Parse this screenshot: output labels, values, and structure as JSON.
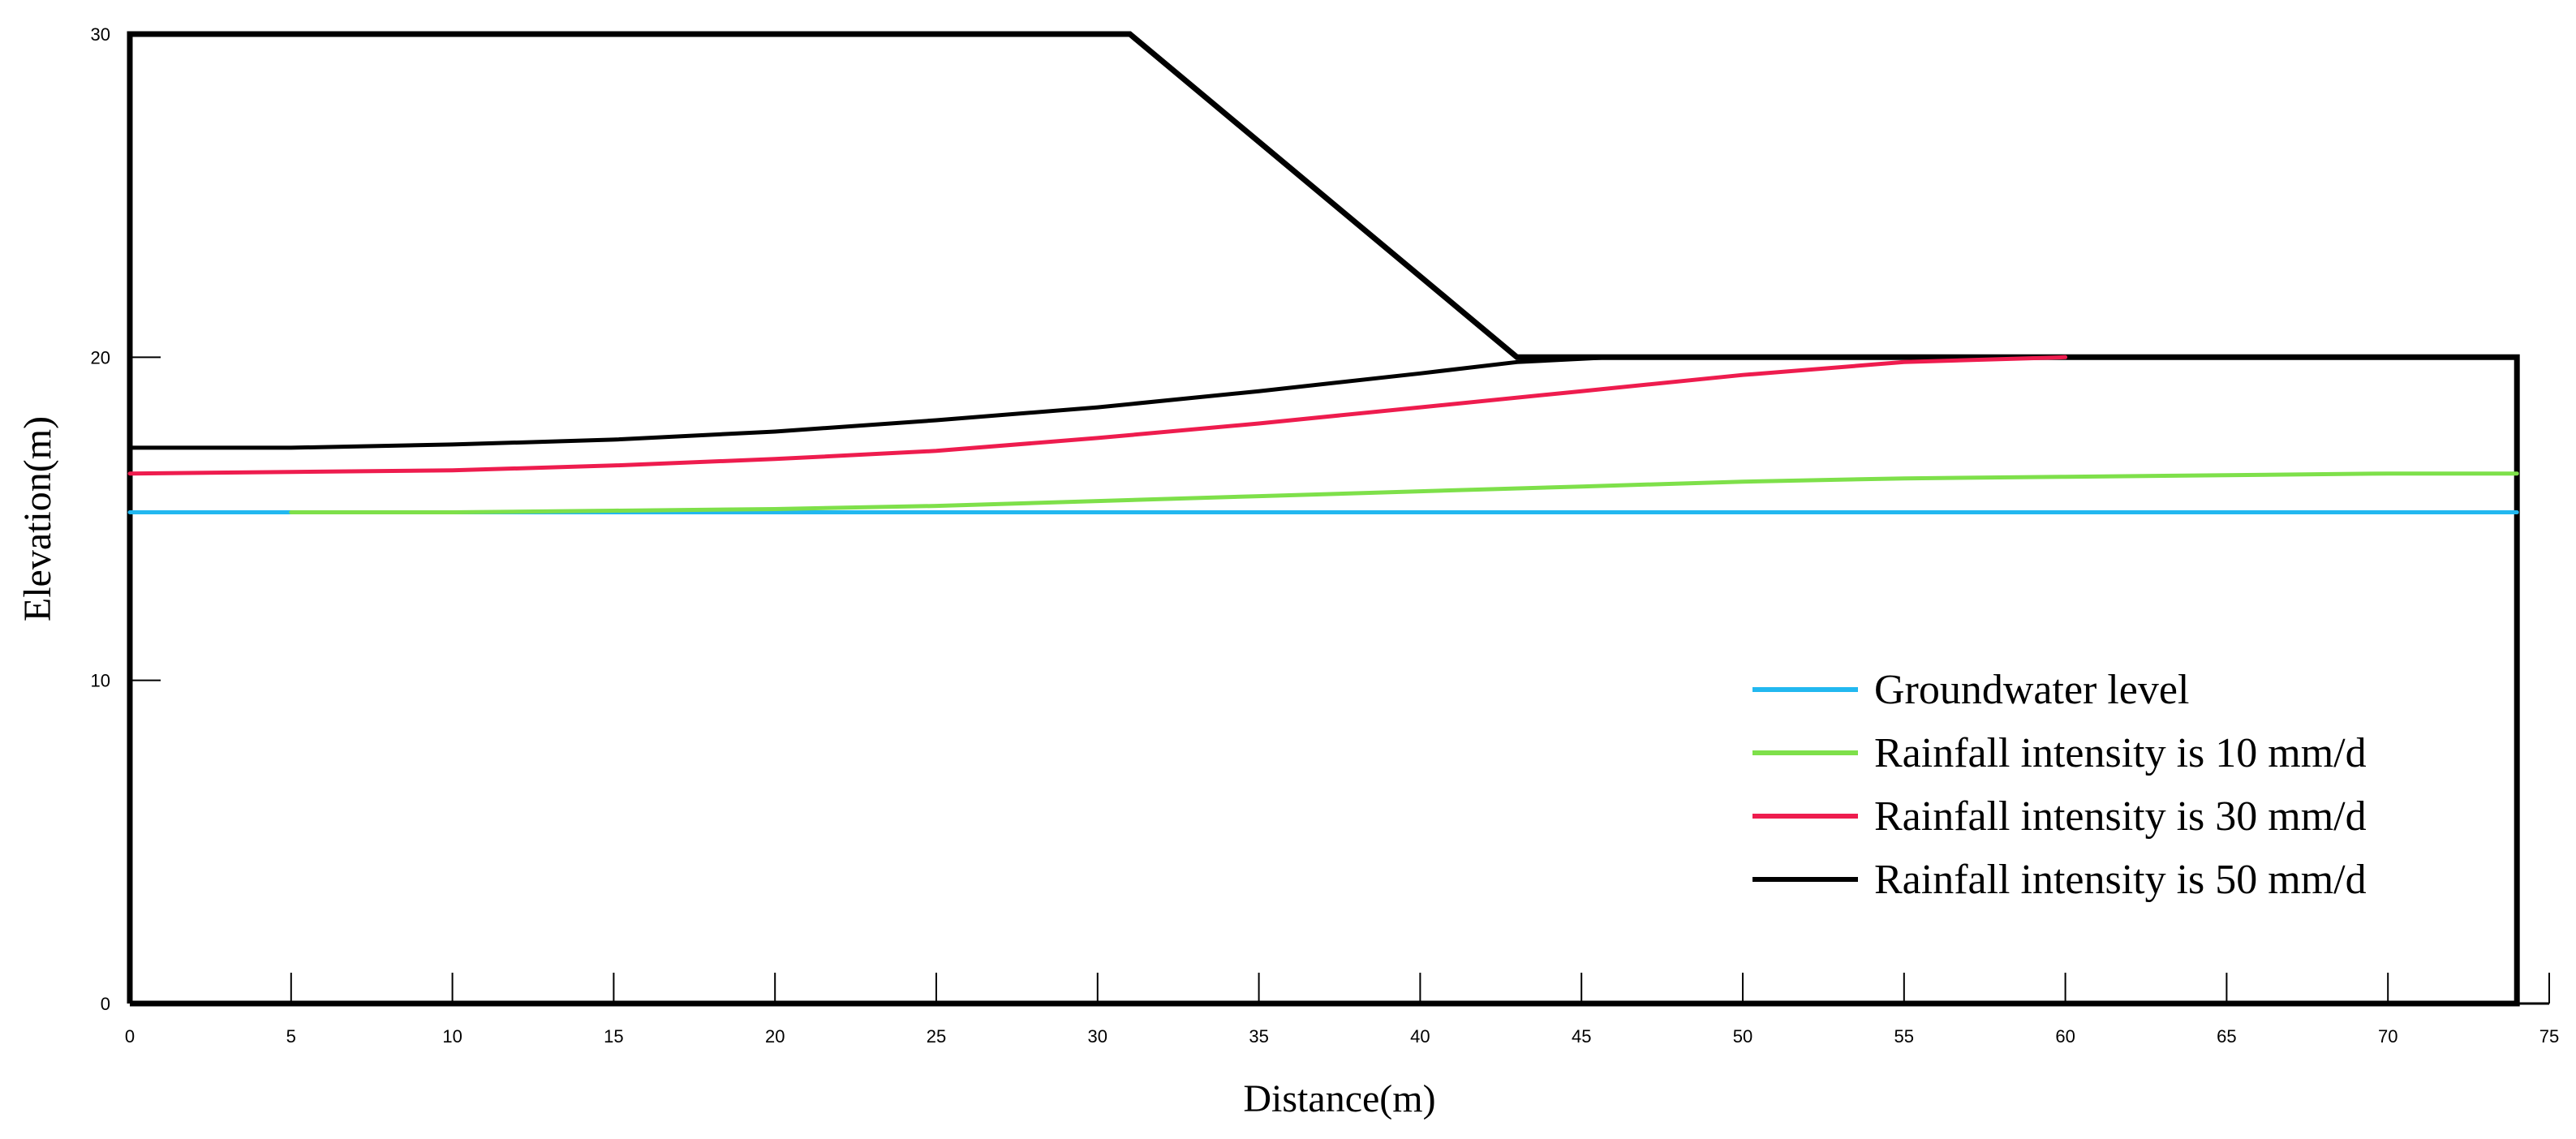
{
  "chart_data": {
    "type": "line",
    "title": "",
    "xlabel": "Distance(m)",
    "ylabel": "Elevation(m)",
    "xlim": [
      0,
      75
    ],
    "ylim": [
      0,
      30
    ],
    "x_ticks": [
      0,
      5,
      10,
      15,
      20,
      25,
      30,
      35,
      40,
      45,
      50,
      55,
      60,
      65,
      70,
      75
    ],
    "y_ticks": [
      0,
      10,
      20,
      30
    ],
    "grid": false,
    "legend_position": "bottom-right",
    "slope_geometry": {
      "x": [
        0,
        0,
        31,
        43,
        74,
        74,
        0
      ],
      "y": [
        0,
        30,
        30,
        20,
        20,
        0,
        0
      ],
      "color": "#000000"
    },
    "series": [
      {
        "name": "Groundwater level",
        "color": "#22b8f0",
        "x": [
          0,
          74
        ],
        "y": [
          15.2,
          15.2
        ]
      },
      {
        "name": "Rainfall intensity is 10 mm/d",
        "color": "#7ee04a",
        "x": [
          5,
          10,
          15,
          20,
          25,
          30,
          35,
          40,
          45,
          50,
          55,
          60,
          65,
          70,
          74
        ],
        "y": [
          15.2,
          15.2,
          15.25,
          15.3,
          15.4,
          15.55,
          15.7,
          15.85,
          16.0,
          16.15,
          16.25,
          16.3,
          16.35,
          16.4,
          16.4
        ]
      },
      {
        "name": "Rainfall intensity is 30 mm/d",
        "color": "#ee1c4e",
        "x": [
          0,
          5,
          10,
          15,
          20,
          25,
          30,
          35,
          40,
          45,
          50,
          55,
          60
        ],
        "y": [
          16.4,
          16.45,
          16.5,
          16.65,
          16.85,
          17.1,
          17.5,
          17.95,
          18.45,
          18.95,
          19.45,
          19.85,
          20.0
        ]
      },
      {
        "name": "Rainfall intensity is 50 mm/d",
        "color": "#000000",
        "x": [
          0,
          5,
          10,
          15,
          20,
          25,
          30,
          35,
          40,
          43,
          46
        ],
        "y": [
          17.2,
          17.2,
          17.3,
          17.45,
          17.7,
          18.05,
          18.45,
          18.95,
          19.5,
          19.85,
          20.0
        ]
      }
    ]
  }
}
